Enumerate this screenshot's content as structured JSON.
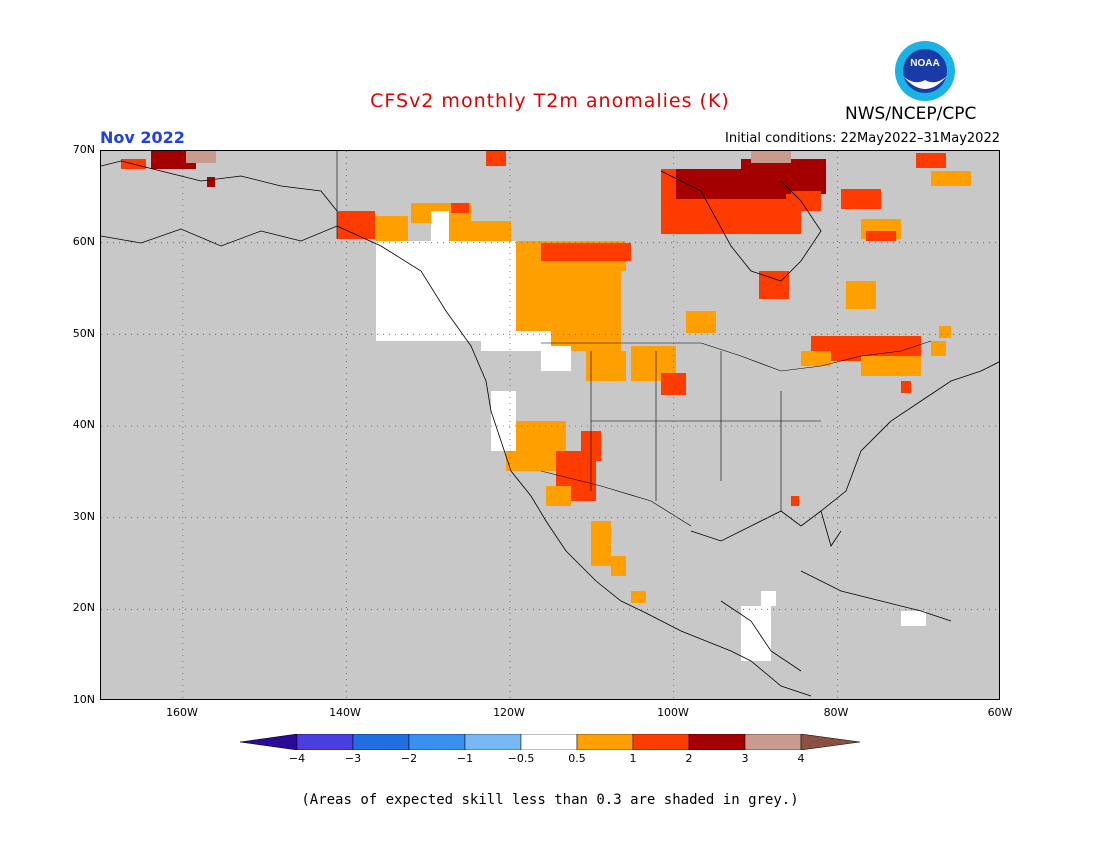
{
  "header": {
    "title": "CFSv2 monthly T2m anomalies (K)",
    "month": "Nov 2022",
    "initial_conditions": "Initial conditions: 22May2022–31May2022",
    "agency": "NWS/NCEP/CPC",
    "logo_text": "NOAA"
  },
  "map": {
    "lat_labels": [
      "70N",
      "60N",
      "50N",
      "40N",
      "30N",
      "20N",
      "10N"
    ],
    "lon_labels": [
      "160W",
      "140W",
      "120W",
      "100W",
      "80W",
      "60W"
    ],
    "lat_range": [
      10,
      70
    ],
    "lon_range": [
      -170,
      -60
    ],
    "grid": "dotted"
  },
  "legend": {
    "colors": [
      "#2a0a9a",
      "#4a3ee0",
      "#1f6fe0",
      "#3a90f0",
      "#78b8f5",
      "#ffffff",
      "#ffa000",
      "#ff3c00",
      "#a50000",
      "#c99a8e",
      "#8a5040"
    ],
    "labels": [
      "−4",
      "−3",
      "−2",
      "−1",
      "−0.5",
      "0.5",
      "1",
      "2",
      "3",
      "4"
    ]
  },
  "footnote": "(Areas of expected skill less than 0.3 are shaded in grey.)",
  "colors": {
    "title": "#e00000",
    "month": "#2040e0",
    "no_skill_grey": "#c8c8c8"
  }
}
